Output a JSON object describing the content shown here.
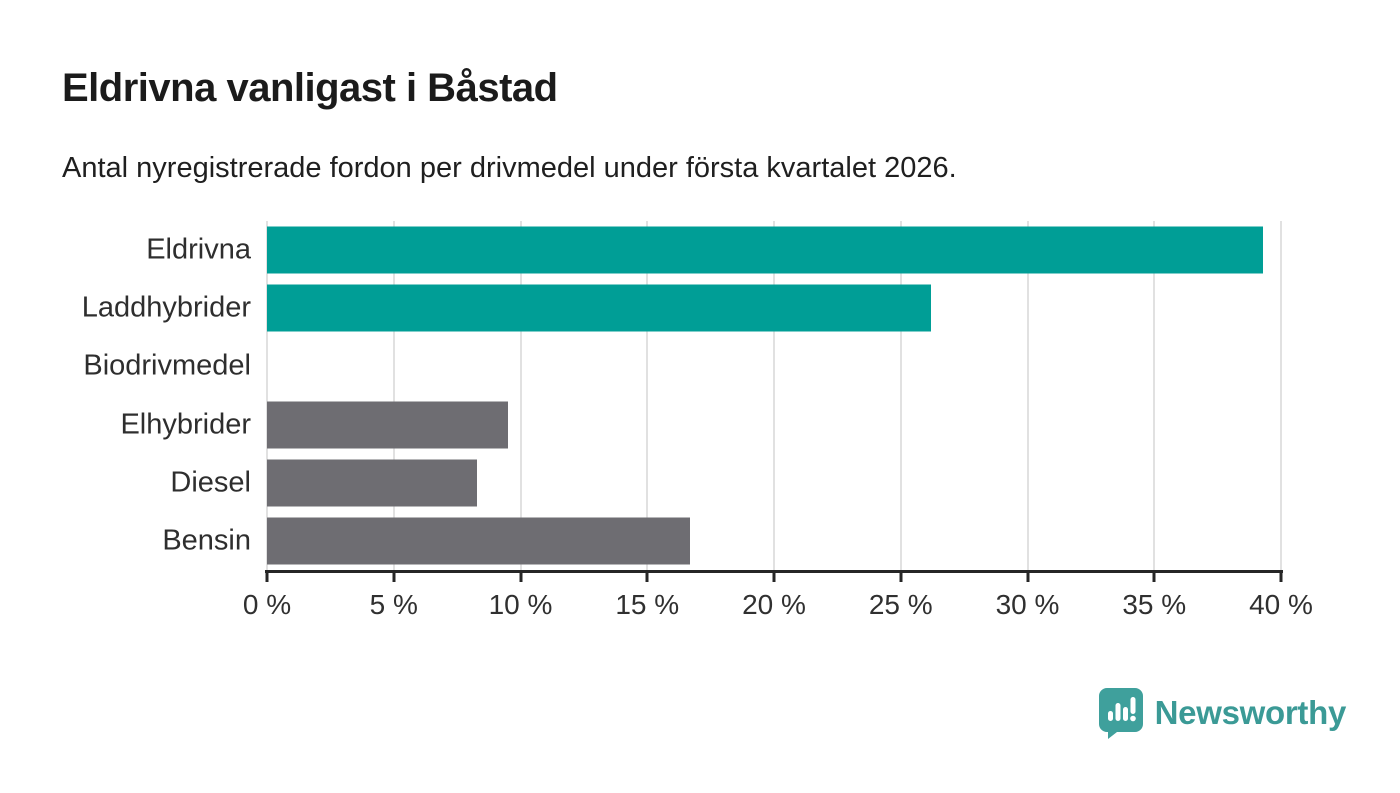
{
  "header": {
    "title": "Eldrivna vanligast i Båstad",
    "subtitle": "Antal nyregistrerade fordon per drivmedel under första kvartalet 2026."
  },
  "chart_data": {
    "type": "bar",
    "orientation": "horizontal",
    "title": "Eldrivna vanligast i Båstad",
    "subtitle": "Antal nyregistrerade fordon per drivmedel under första kvartalet 2026.",
    "categories": [
      "Eldrivna",
      "Laddhybrider",
      "Biodrivmedel",
      "Elhybrider",
      "Diesel",
      "Bensin"
    ],
    "values": [
      39.3,
      26.2,
      0,
      9.5,
      8.3,
      16.7
    ],
    "unit": "%",
    "xlabel": "",
    "ylabel": "",
    "xlim": [
      0,
      40
    ],
    "xticks": [
      0,
      5,
      10,
      15,
      20,
      25,
      30,
      35,
      40
    ],
    "xtick_labels": [
      "0 %",
      "5 %",
      "10 %",
      "15 %",
      "20 %",
      "25 %",
      "30 %",
      "35 %",
      "40 %"
    ],
    "grid": true,
    "legend": false,
    "bar_colors": [
      "#009e96",
      "#009e96",
      "#6e6d72",
      "#6e6d72",
      "#6e6d72",
      "#6e6d72"
    ]
  },
  "colors": {
    "accent_teal": "#009e96",
    "neutral_gray": "#6e6d72",
    "gridline": "#e1e1e1",
    "axis": "#262626",
    "logo_teal": "#3fa09c",
    "wordmark_teal": "#3b9a96"
  },
  "footer": {
    "brand": "Newsworthy"
  }
}
